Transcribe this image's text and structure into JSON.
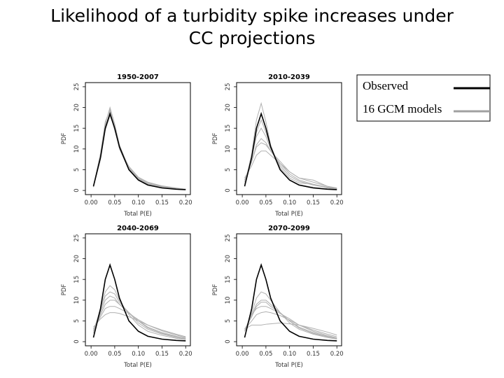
{
  "title_lines": [
    "Likelihood of a turbidity spike increases under",
    "CC projections"
  ],
  "legend": {
    "items": [
      {
        "label": "Observed",
        "color": "#000000"
      },
      {
        "label": "16 GCM models",
        "color": "#a0a0a0"
      }
    ]
  },
  "chart_data": [
    {
      "type": "line",
      "title": "1950-2007",
      "xlabel": "Total P(E)",
      "ylabel": "PDF",
      "x": [
        0.005,
        0.02,
        0.03,
        0.04,
        0.05,
        0.06,
        0.08,
        0.1,
        0.12,
        0.15,
        0.18,
        0.2
      ],
      "xlim": [
        -0.012,
        0.21
      ],
      "ylim": [
        -1,
        26
      ],
      "xticks": [
        {
          "value": 0,
          "label": "0.00"
        },
        {
          "value": 0.05,
          "label": "0.05"
        },
        {
          "value": 0.1,
          "label": "0.10"
        },
        {
          "value": 0.15,
          "label": "0.15"
        },
        {
          "value": 0.2,
          "label": "0.20"
        }
      ],
      "yticks": [
        0,
        5,
        10,
        15,
        20,
        25
      ],
      "series": [
        {
          "color": "#000000",
          "values": [
            1,
            8,
            15,
            18.5,
            15,
            10.5,
            5,
            2.5,
            1.3,
            0.6,
            0.3,
            0.2
          ]
        },
        {
          "color": "#b0b0b0",
          "values": [
            1,
            8.5,
            16,
            20,
            16,
            11,
            5.2,
            2.6,
            1.5,
            0.8,
            0.4,
            0.3
          ]
        },
        {
          "color": "#b0b0b0",
          "values": [
            1.2,
            8,
            15,
            19,
            15.5,
            10.8,
            5.5,
            2.8,
            1.6,
            0.9,
            0.5,
            0.3
          ]
        },
        {
          "color": "#b0b0b0",
          "values": [
            0.8,
            7.5,
            14.5,
            18,
            15,
            10.5,
            5.5,
            3,
            1.8,
            1,
            0.5,
            0.3
          ]
        },
        {
          "color": "#b0b0b0",
          "values": [
            1,
            9,
            16.5,
            19.5,
            15,
            10,
            5,
            2.5,
            1.4,
            0.8,
            0.4,
            0.2
          ]
        },
        {
          "color": "#b0b0b0",
          "values": [
            1.1,
            8,
            15.5,
            18.5,
            14.5,
            10.2,
            5.8,
            3.2,
            2,
            1.1,
            0.6,
            0.3
          ]
        }
      ]
    },
    {
      "type": "line",
      "title": "2010-2039",
      "xlabel": "Total P(E)",
      "ylabel": "PDF",
      "x": [
        0.005,
        0.02,
        0.03,
        0.04,
        0.05,
        0.06,
        0.08,
        0.1,
        0.12,
        0.15,
        0.18,
        0.2
      ],
      "xlim": [
        -0.012,
        0.21
      ],
      "ylim": [
        -1,
        26
      ],
      "xticks": [
        {
          "value": 0,
          "label": "0.00"
        },
        {
          "value": 0.05,
          "label": "0.05"
        },
        {
          "value": 0.1,
          "label": "0.10"
        },
        {
          "value": 0.15,
          "label": "0.15"
        },
        {
          "value": 0.2,
          "label": "0.20"
        }
      ],
      "yticks": [
        0,
        5,
        10,
        15,
        20,
        25
      ],
      "series": [
        {
          "color": "#000000",
          "values": [
            1,
            8,
            15,
            18.5,
            15,
            10.5,
            5,
            2.5,
            1.3,
            0.6,
            0.3,
            0.2
          ]
        },
        {
          "color": "#b0b0b0",
          "values": [
            1,
            9,
            17,
            21,
            16.5,
            11,
            5,
            2.5,
            1.4,
            0.8,
            0.4,
            0.2
          ]
        },
        {
          "color": "#b0b0b0",
          "values": [
            2,
            8,
            13,
            15,
            13,
            10,
            6,
            3.5,
            2.2,
            1.3,
            0.7,
            0.4
          ]
        },
        {
          "color": "#b0b0b0",
          "values": [
            2.5,
            7,
            11,
            12.5,
            11.5,
            9.5,
            6.5,
            4,
            2.5,
            1.5,
            0.8,
            0.5
          ]
        },
        {
          "color": "#b0b0b0",
          "values": [
            3,
            6,
            8.5,
            9.5,
            9.5,
            8.5,
            6.5,
            4.5,
            3,
            2,
            1,
            0.6
          ]
        },
        {
          "color": "#b0b0b0",
          "values": [
            1.5,
            8,
            14,
            17,
            14,
            10.5,
            5.5,
            3,
            1.8,
            1.5,
            0.6,
            0.3
          ]
        },
        {
          "color": "#b0b0b0",
          "values": [
            2.5,
            7,
            10.5,
            11.5,
            11,
            9.5,
            7,
            4.5,
            3,
            2.5,
            1,
            0.5
          ]
        }
      ]
    },
    {
      "type": "line",
      "title": "2040-2069",
      "xlabel": "Total P(E)",
      "ylabel": "PDF",
      "x": [
        0.005,
        0.02,
        0.03,
        0.04,
        0.05,
        0.06,
        0.08,
        0.1,
        0.12,
        0.15,
        0.18,
        0.2
      ],
      "xlim": [
        -0.012,
        0.21
      ],
      "ylim": [
        -1,
        26
      ],
      "xticks": [
        {
          "value": 0,
          "label": "0.00"
        },
        {
          "value": 0.05,
          "label": "0.05"
        },
        {
          "value": 0.1,
          "label": "0.10"
        },
        {
          "value": 0.15,
          "label": "0.15"
        },
        {
          "value": 0.2,
          "label": "0.20"
        }
      ],
      "yticks": [
        0,
        5,
        10,
        15,
        20,
        25
      ],
      "series": [
        {
          "color": "#000000",
          "values": [
            1,
            8,
            15,
            18.5,
            15,
            10.5,
            5,
            2.5,
            1.3,
            0.6,
            0.3,
            0.2
          ]
        },
        {
          "color": "#b0b0b0",
          "values": [
            2.5,
            8,
            12,
            13.5,
            12.5,
            10,
            6.5,
            4,
            2.5,
            1.5,
            0.8,
            0.5
          ]
        },
        {
          "color": "#b0b0b0",
          "values": [
            3,
            6.5,
            9,
            10,
            10,
            9,
            7,
            5,
            3.3,
            2,
            1.2,
            0.8
          ]
        },
        {
          "color": "#b0b0b0",
          "values": [
            3.5,
            5.5,
            6.5,
            7,
            7,
            6.8,
            6,
            5,
            4,
            2.8,
            1.8,
            1.2
          ]
        },
        {
          "color": "#b0b0b0",
          "values": [
            2,
            7.5,
            11,
            12,
            11.5,
            9.5,
            7,
            4.5,
            3,
            1.8,
            1,
            0.6
          ]
        },
        {
          "color": "#b0b0b0",
          "values": [
            3,
            6,
            8,
            8.5,
            8.5,
            8,
            6.8,
            5.3,
            4,
            2.6,
            1.6,
            1
          ]
        },
        {
          "color": "#b0b0b0",
          "values": [
            2.5,
            7,
            10,
            11,
            10.5,
            9,
            7,
            5,
            3.5,
            2.2,
            1.3,
            0.8
          ]
        }
      ]
    },
    {
      "type": "line",
      "title": "2070-2099",
      "xlabel": "Total P(E)",
      "ylabel": "PDF",
      "x": [
        0.005,
        0.02,
        0.03,
        0.04,
        0.05,
        0.06,
        0.08,
        0.1,
        0.12,
        0.15,
        0.18,
        0.2
      ],
      "xlim": [
        -0.012,
        0.21
      ],
      "ylim": [
        -1,
        26
      ],
      "xticks": [
        {
          "value": 0,
          "label": "0.00"
        },
        {
          "value": 0.05,
          "label": "0.05"
        },
        {
          "value": 0.1,
          "label": "0.10"
        },
        {
          "value": 0.15,
          "label": "0.15"
        },
        {
          "value": 0.2,
          "label": "0.20"
        }
      ],
      "yticks": [
        0,
        5,
        10,
        15,
        20,
        25
      ],
      "series": [
        {
          "color": "#000000",
          "values": [
            1,
            8,
            15,
            18.5,
            15,
            10.5,
            5,
            2.5,
            1.3,
            0.6,
            0.3,
            0.2
          ]
        },
        {
          "color": "#b0b0b0",
          "values": [
            2.5,
            7,
            10.5,
            12,
            11.5,
            10,
            7,
            4.5,
            3,
            1.8,
            1,
            0.6
          ]
        },
        {
          "color": "#b0b0b0",
          "values": [
            3,
            6,
            8.5,
            9.5,
            9.5,
            8.5,
            7,
            5,
            3.5,
            2.2,
            1.3,
            0.8
          ]
        },
        {
          "color": "#b0b0b0",
          "values": [
            3,
            4,
            4,
            4,
            4.2,
            4.3,
            4.5,
            4.3,
            4,
            3.2,
            2.3,
            1.6
          ]
        },
        {
          "color": "#b0b0b0",
          "values": [
            2.5,
            6.5,
            9,
            10,
            10,
            9,
            7,
            5,
            3.3,
            2,
            1.2,
            0.8
          ]
        },
        {
          "color": "#b0b0b0",
          "values": [
            3,
            5,
            6.5,
            7,
            7.2,
            7,
            6.3,
            5.2,
            4,
            2.8,
            1.8,
            1.2
          ]
        },
        {
          "color": "#b0b0b0",
          "values": [
            2.5,
            6.5,
            8,
            8.5,
            8.5,
            8,
            6.8,
            5.5,
            4,
            2.5,
            1.5,
            0.9
          ]
        }
      ]
    }
  ]
}
